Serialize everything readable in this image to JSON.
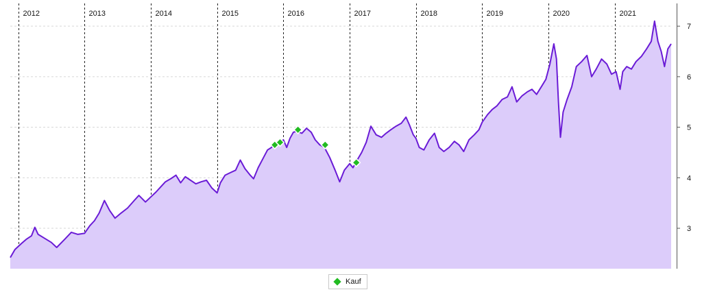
{
  "chart_data": {
    "type": "area",
    "title": "",
    "xlabel": "",
    "ylabel": "",
    "x_years": [
      "2012",
      "2013",
      "2014",
      "2015",
      "2016",
      "2017",
      "2018",
      "2019",
      "2020",
      "2021"
    ],
    "x_range": [
      2011.88,
      2021.85
    ],
    "ylim": [
      2.2,
      7.45
    ],
    "y_ticks": [
      3,
      4,
      5,
      6,
      7
    ],
    "y_axis_side": "right",
    "grid": {
      "horizontal": true,
      "horizontal_style": "dashed-light",
      "vertical": true,
      "vertical_style": "dashed-dark"
    },
    "series": [
      {
        "type": "area",
        "color": "#6a1bd6",
        "fill_color": "#dcccfa",
        "points": [
          [
            2011.88,
            2.42
          ],
          [
            2011.95,
            2.58
          ],
          [
            2012.05,
            2.7
          ],
          [
            2012.12,
            2.78
          ],
          [
            2012.2,
            2.85
          ],
          [
            2012.25,
            3.02
          ],
          [
            2012.3,
            2.88
          ],
          [
            2012.4,
            2.8
          ],
          [
            2012.5,
            2.72
          ],
          [
            2012.58,
            2.62
          ],
          [
            2012.7,
            2.78
          ],
          [
            2012.8,
            2.92
          ],
          [
            2012.9,
            2.88
          ],
          [
            2013.0,
            2.9
          ],
          [
            2013.08,
            3.05
          ],
          [
            2013.15,
            3.15
          ],
          [
            2013.22,
            3.3
          ],
          [
            2013.3,
            3.55
          ],
          [
            2013.38,
            3.35
          ],
          [
            2013.46,
            3.2
          ],
          [
            2013.55,
            3.3
          ],
          [
            2013.65,
            3.4
          ],
          [
            2013.75,
            3.55
          ],
          [
            2013.82,
            3.65
          ],
          [
            2013.92,
            3.52
          ],
          [
            2014.0,
            3.62
          ],
          [
            2014.08,
            3.72
          ],
          [
            2014.15,
            3.82
          ],
          [
            2014.22,
            3.92
          ],
          [
            2014.3,
            3.98
          ],
          [
            2014.38,
            4.05
          ],
          [
            2014.45,
            3.9
          ],
          [
            2014.52,
            4.02
          ],
          [
            2014.6,
            3.95
          ],
          [
            2014.68,
            3.88
          ],
          [
            2014.76,
            3.92
          ],
          [
            2014.84,
            3.95
          ],
          [
            2014.92,
            3.8
          ],
          [
            2015.0,
            3.7
          ],
          [
            2015.05,
            3.9
          ],
          [
            2015.12,
            4.05
          ],
          [
            2015.2,
            4.1
          ],
          [
            2015.28,
            4.15
          ],
          [
            2015.35,
            4.35
          ],
          [
            2015.42,
            4.18
          ],
          [
            2015.5,
            4.05
          ],
          [
            2015.55,
            3.98
          ],
          [
            2015.62,
            4.2
          ],
          [
            2015.7,
            4.4
          ],
          [
            2015.76,
            4.55
          ],
          [
            2015.82,
            4.6
          ],
          [
            2015.88,
            4.68
          ],
          [
            2015.95,
            4.7
          ],
          [
            2016.0,
            4.75
          ],
          [
            2016.05,
            4.6
          ],
          [
            2016.1,
            4.78
          ],
          [
            2016.15,
            4.9
          ],
          [
            2016.2,
            4.92
          ],
          [
            2016.28,
            4.88
          ],
          [
            2016.35,
            4.98
          ],
          [
            2016.42,
            4.9
          ],
          [
            2016.48,
            4.75
          ],
          [
            2016.55,
            4.65
          ],
          [
            2016.62,
            4.6
          ],
          [
            2016.7,
            4.4
          ],
          [
            2016.78,
            4.15
          ],
          [
            2016.85,
            3.92
          ],
          [
            2016.92,
            4.15
          ],
          [
            2017.0,
            4.28
          ],
          [
            2017.05,
            4.2
          ],
          [
            2017.1,
            4.32
          ],
          [
            2017.18,
            4.5
          ],
          [
            2017.25,
            4.7
          ],
          [
            2017.32,
            5.02
          ],
          [
            2017.4,
            4.85
          ],
          [
            2017.48,
            4.8
          ],
          [
            2017.55,
            4.88
          ],
          [
            2017.62,
            4.95
          ],
          [
            2017.7,
            5.02
          ],
          [
            2017.78,
            5.08
          ],
          [
            2017.85,
            5.2
          ],
          [
            2017.9,
            5.05
          ],
          [
            2017.96,
            4.85
          ],
          [
            2018.0,
            4.78
          ],
          [
            2018.05,
            4.6
          ],
          [
            2018.12,
            4.55
          ],
          [
            2018.2,
            4.75
          ],
          [
            2018.28,
            4.88
          ],
          [
            2018.35,
            4.6
          ],
          [
            2018.42,
            4.52
          ],
          [
            2018.5,
            4.6
          ],
          [
            2018.58,
            4.72
          ],
          [
            2018.65,
            4.65
          ],
          [
            2018.72,
            4.52
          ],
          [
            2018.8,
            4.75
          ],
          [
            2018.88,
            4.85
          ],
          [
            2018.95,
            4.95
          ],
          [
            2019.0,
            5.1
          ],
          [
            2019.08,
            5.25
          ],
          [
            2019.15,
            5.35
          ],
          [
            2019.22,
            5.42
          ],
          [
            2019.3,
            5.55
          ],
          [
            2019.38,
            5.6
          ],
          [
            2019.45,
            5.8
          ],
          [
            2019.52,
            5.5
          ],
          [
            2019.6,
            5.62
          ],
          [
            2019.68,
            5.7
          ],
          [
            2019.75,
            5.75
          ],
          [
            2019.82,
            5.65
          ],
          [
            2019.9,
            5.82
          ],
          [
            2019.96,
            5.95
          ],
          [
            2020.02,
            6.25
          ],
          [
            2020.08,
            6.65
          ],
          [
            2020.12,
            6.35
          ],
          [
            2020.15,
            5.5
          ],
          [
            2020.18,
            4.8
          ],
          [
            2020.22,
            5.3
          ],
          [
            2020.28,
            5.55
          ],
          [
            2020.35,
            5.8
          ],
          [
            2020.42,
            6.2
          ],
          [
            2020.5,
            6.3
          ],
          [
            2020.58,
            6.42
          ],
          [
            2020.65,
            6.0
          ],
          [
            2020.72,
            6.15
          ],
          [
            2020.8,
            6.35
          ],
          [
            2020.88,
            6.25
          ],
          [
            2020.95,
            6.05
          ],
          [
            2021.02,
            6.1
          ],
          [
            2021.08,
            5.75
          ],
          [
            2021.12,
            6.1
          ],
          [
            2021.18,
            6.2
          ],
          [
            2021.25,
            6.15
          ],
          [
            2021.32,
            6.3
          ],
          [
            2021.4,
            6.4
          ],
          [
            2021.48,
            6.55
          ],
          [
            2021.55,
            6.7
          ],
          [
            2021.6,
            7.1
          ],
          [
            2021.65,
            6.7
          ],
          [
            2021.7,
            6.5
          ],
          [
            2021.75,
            6.2
          ],
          [
            2021.8,
            6.55
          ],
          [
            2021.85,
            6.65
          ]
        ]
      }
    ],
    "markers": [
      {
        "label": "Kauf",
        "color": "#22bb22",
        "points": [
          [
            2015.87,
            4.65
          ],
          [
            2015.95,
            4.7
          ],
          [
            2016.22,
            4.95
          ],
          [
            2016.63,
            4.65
          ],
          [
            2017.1,
            4.3
          ]
        ]
      }
    ],
    "legend": {
      "position": "bottom-center",
      "entries": [
        {
          "label": "Kauf",
          "color": "#22bb22"
        }
      ]
    }
  }
}
